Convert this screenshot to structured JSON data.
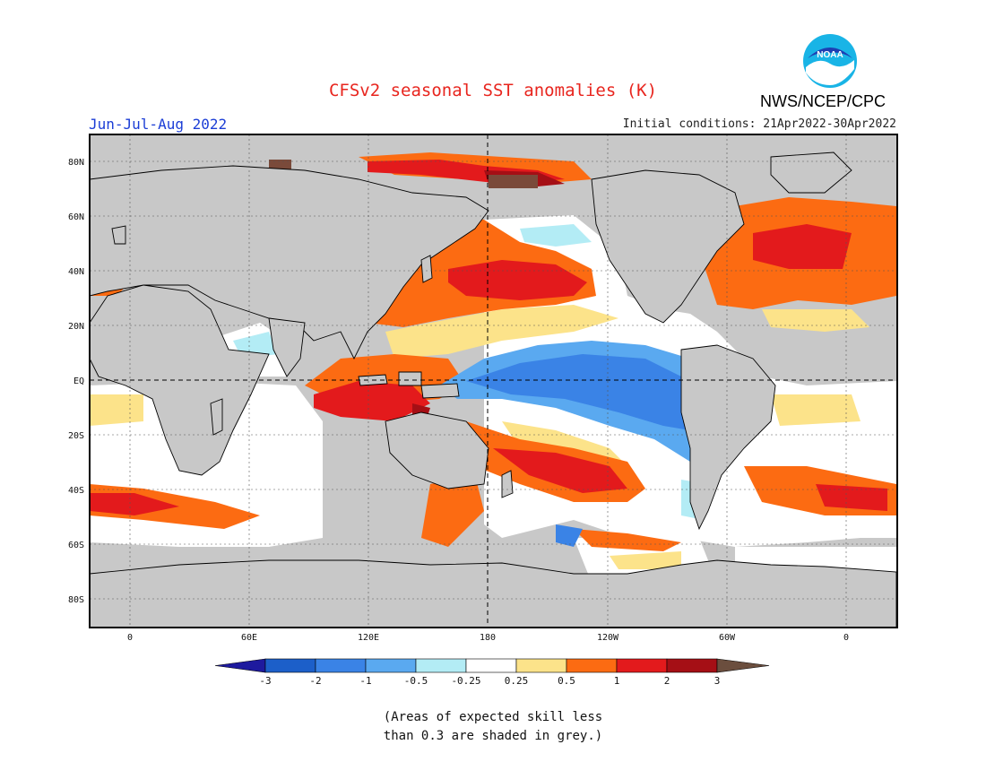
{
  "header": {
    "title": "CFSv2 seasonal SST anomalies (K)",
    "period": "Jun-Jul-Aug 2022",
    "initial_conditions": "Initial conditions: 21Apr2022-30Apr2022",
    "agency": "NWS/NCEP/CPC",
    "logo_text": "NOAA"
  },
  "axes": {
    "lat_ticks": [
      "80N",
      "60N",
      "40N",
      "20N",
      "EQ",
      "20S",
      "40S",
      "60S",
      "80S"
    ],
    "lon_ticks": [
      "0",
      "60E",
      "120E",
      "180",
      "120W",
      "60W",
      "0"
    ]
  },
  "colorbar": {
    "labels": [
      "-3",
      "-2",
      "-1",
      "-0.5",
      "-0.25",
      "0.25",
      "0.5",
      "1",
      "2",
      "3"
    ],
    "colors": [
      "#1e1a9e",
      "#1c5fc9",
      "#3a83e6",
      "#5aa9f0",
      "#b3ecf5",
      "#ffffff",
      "#fce38a",
      "#fc6b12",
      "#e31a1c",
      "#a50f15",
      "#7a4a3a"
    ],
    "low_color": "#3a0aa8",
    "high_color": "#6b4e3e"
  },
  "legend_note": {
    "line1": "(Areas of expected skill less",
    "line2": "than 0.3 are shaded in grey.)"
  },
  "map_colors": {
    "background": "#c8c8c8",
    "land": "#c8c8c8",
    "coast": "#000000"
  }
}
